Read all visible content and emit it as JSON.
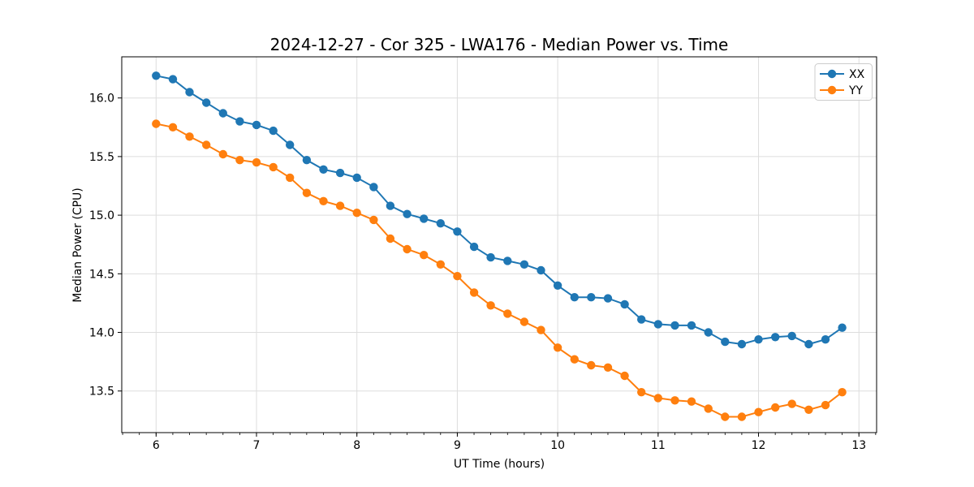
{
  "figure": {
    "title": "2024-12-27 - Cor 325 - LWA176 - Median Power vs. Time",
    "xlabel": "UT Time (hours)",
    "ylabel": "Median Power (CPU)"
  },
  "colors": {
    "background": "#ffffff",
    "grid": "#dddddd",
    "spine": "#000000",
    "tick": "#000000",
    "legend_border": "#cccccc",
    "series_xx": "#1f77b4",
    "series_yy": "#ff7f0e"
  },
  "chart_data": {
    "type": "line",
    "title": "2024-12-27 - Cor 325 - LWA176 - Median Power vs. Time",
    "xlabel": "UT Time (hours)",
    "ylabel": "Median Power (CPU)",
    "xlim": [
      5.658,
      13.176
    ],
    "ylim": [
      13.145,
      16.351
    ],
    "xticks": [
      6,
      7,
      8,
      9,
      10,
      11,
      12,
      13
    ],
    "x_tick_labels": [
      "6",
      "7",
      "8",
      "9",
      "10",
      "11",
      "12",
      "13"
    ],
    "yticks": [
      13.5,
      14.0,
      14.5,
      15.0,
      15.5,
      16.0
    ],
    "y_tick_labels": [
      "13.5",
      "14.0",
      "14.5",
      "15.0",
      "15.5",
      "16.0"
    ],
    "x_minor_tick_interval": 0.166667,
    "grid": true,
    "legend": {
      "position": "upper right",
      "entries": [
        "XX",
        "YY"
      ]
    },
    "marker": "circle",
    "x": [
      6.0,
      6.167,
      6.333,
      6.5,
      6.667,
      6.833,
      7.0,
      7.167,
      7.333,
      7.5,
      7.667,
      7.833,
      8.0,
      8.167,
      8.333,
      8.5,
      8.667,
      8.833,
      9.0,
      9.167,
      9.333,
      9.5,
      9.667,
      9.833,
      10.0,
      10.167,
      10.333,
      10.5,
      10.667,
      10.833,
      11.0,
      11.167,
      11.333,
      11.5,
      11.667,
      11.833,
      12.0,
      12.167,
      12.333,
      12.5,
      12.667,
      12.833
    ],
    "series": [
      {
        "name": "XX",
        "color": "#1f77b4",
        "values": [
          16.19,
          16.16,
          16.05,
          15.96,
          15.87,
          15.8,
          15.77,
          15.72,
          15.6,
          15.47,
          15.39,
          15.36,
          15.32,
          15.24,
          15.08,
          15.01,
          14.97,
          14.93,
          14.86,
          14.73,
          14.64,
          14.61,
          14.58,
          14.53,
          14.4,
          14.3,
          14.3,
          14.29,
          14.24,
          14.11,
          14.07,
          14.06,
          14.06,
          14.0,
          13.92,
          13.9,
          13.94,
          13.96,
          13.97,
          13.9,
          13.94,
          14.04
        ]
      },
      {
        "name": "YY",
        "color": "#ff7f0e",
        "values": [
          15.78,
          15.75,
          15.67,
          15.6,
          15.52,
          15.47,
          15.45,
          15.41,
          15.32,
          15.19,
          15.12,
          15.08,
          15.02,
          14.96,
          14.8,
          14.71,
          14.66,
          14.58,
          14.48,
          14.34,
          14.23,
          14.16,
          14.09,
          14.02,
          13.87,
          13.77,
          13.72,
          13.7,
          13.63,
          13.49,
          13.44,
          13.42,
          13.41,
          13.35,
          13.28,
          13.28,
          13.32,
          13.36,
          13.39,
          13.34,
          13.38,
          13.49
        ]
      }
    ]
  }
}
